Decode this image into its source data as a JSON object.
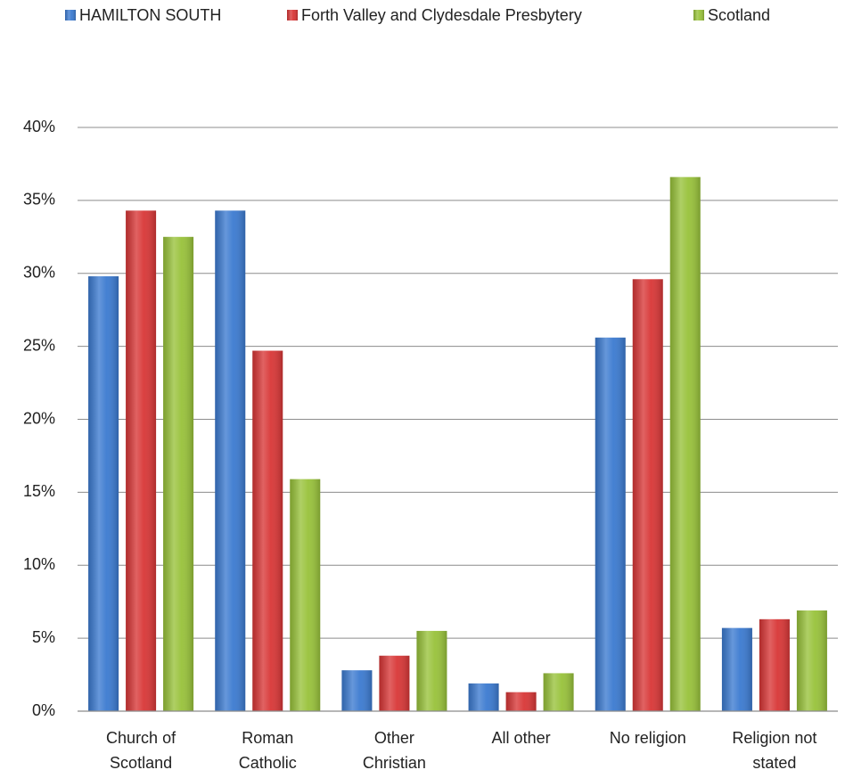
{
  "chart_data": {
    "type": "bar",
    "categories": [
      "Church of Scotland",
      "Roman Catholic",
      "Other Christian",
      "All other",
      "No religion",
      "Religion not stated"
    ],
    "series": [
      {
        "name": "HAMILTON SOUTH",
        "color": "#3b7ad0",
        "values": [
          29.8,
          34.3,
          2.8,
          1.9,
          25.6,
          5.7
        ]
      },
      {
        "name": "Forth Valley and Clydesdale Presbytery",
        "color": "#d83636",
        "values": [
          34.3,
          24.7,
          3.8,
          1.3,
          29.6,
          6.3
        ]
      },
      {
        "name": "Scotland",
        "color": "#98c23a",
        "values": [
          32.5,
          15.9,
          5.5,
          2.6,
          36.6,
          6.9
        ]
      }
    ],
    "ylim": [
      0,
      40
    ],
    "yticks": [
      {
        "value": 0,
        "label": "0%"
      },
      {
        "value": 5,
        "label": "5%"
      },
      {
        "value": 10,
        "label": "10%"
      },
      {
        "value": 15,
        "label": "15%"
      },
      {
        "value": 20,
        "label": "20%"
      },
      {
        "value": 25,
        "label": "25%"
      },
      {
        "value": 30,
        "label": "30%"
      },
      {
        "value": 35,
        "label": "35%"
      },
      {
        "value": 40,
        "label": "40%"
      }
    ],
    "grid": true,
    "legend": "top"
  }
}
